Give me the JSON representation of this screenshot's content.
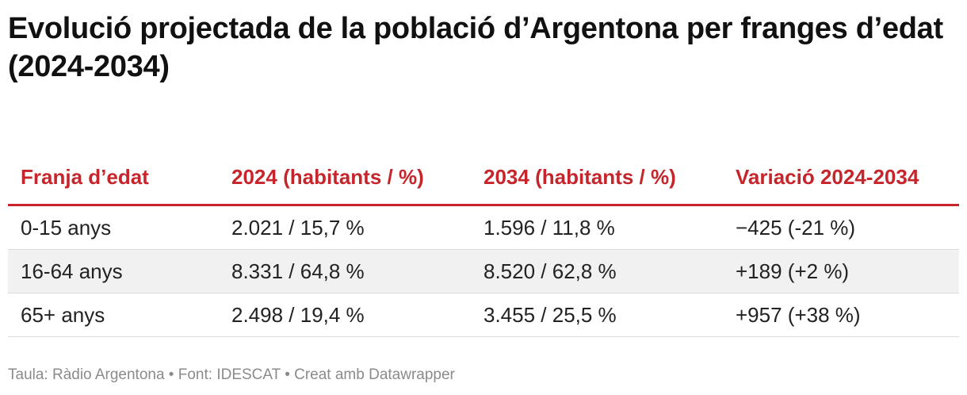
{
  "chart_data": {
    "type": "table",
    "title": "Evolució projectada de la població d’Argentona per franges d’edat (2024-2034)",
    "columns": [
      "Franja d’edat",
      "2024 (habitants / %)",
      "2034 (habitants / %)",
      "Variació 2024-2034"
    ],
    "rows": [
      [
        "0-15 anys",
        "2.021 / 15,7 %",
        "1.596 / 11,8 %",
        "−425 (-21 %)"
      ],
      [
        "16-64 anys",
        "8.331 / 64,8 %",
        "8.520 / 62,8 %",
        "+189 (+2 %)"
      ],
      [
        "65+ anys",
        "2.498 / 19,4 %",
        "3.455 / 25,5 %",
        "+957 (+38 %)"
      ]
    ],
    "header_color": "#c6252b"
  },
  "footer": {
    "text": "Taula: Ràdio Argentona • Font: IDESCAT • Creat amb Datawrapper"
  }
}
